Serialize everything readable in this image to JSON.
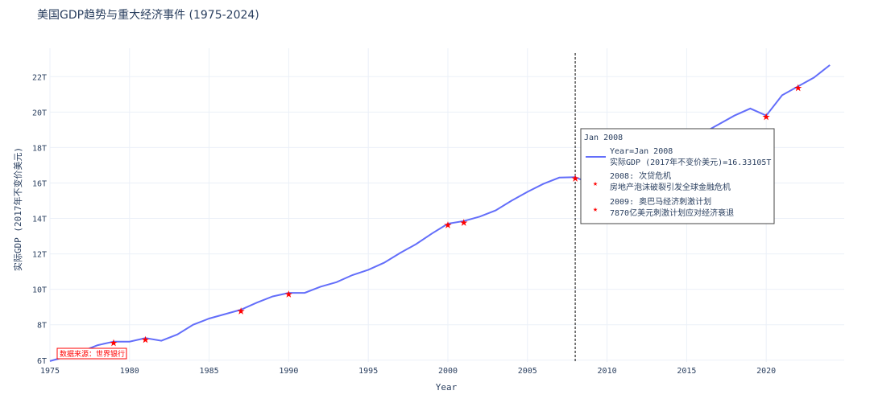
{
  "chart_data": {
    "type": "line",
    "title": "美国GDP趋势与重大经济事件 (1975-2024)",
    "xlabel": "Year",
    "ylabel": "实际GDP (2017年不变价美元)",
    "xlim": [
      1975,
      2024.9
    ],
    "ylim": [
      5.9,
      23.6
    ],
    "grid": true,
    "colors": {
      "line": "#636efa",
      "marker": "#ff0000",
      "spike": "#000000"
    },
    "x_ticks": [
      "1975",
      "1980",
      "1985",
      "1990",
      "1995",
      "2000",
      "2005",
      "2010",
      "2015",
      "2020"
    ],
    "y_ticks": [
      {
        "value": 6,
        "label": "6T"
      },
      {
        "value": 8,
        "label": "8T"
      },
      {
        "value": 10,
        "label": "10T"
      },
      {
        "value": 12,
        "label": "12T"
      },
      {
        "value": 14,
        "label": "14T"
      },
      {
        "value": 16,
        "label": "16T"
      },
      {
        "value": 18,
        "label": "18T"
      },
      {
        "value": 20,
        "label": "20T"
      },
      {
        "value": 22,
        "label": "22T"
      }
    ],
    "series": [
      {
        "x": [
          1975,
          1976,
          1977,
          1978,
          1979,
          1980,
          1981,
          1982,
          1983,
          1984,
          1985,
          1986,
          1987,
          1988,
          1989,
          1990,
          1991,
          1992,
          1993,
          1994,
          1995,
          1996,
          1997,
          1998,
          1999,
          2000,
          2001,
          2002,
          2003,
          2004,
          2005,
          2006,
          2007,
          2008,
          2009,
          2010,
          2011,
          2012,
          2013,
          2014,
          2015,
          2016,
          2017,
          2018,
          2019,
          2020,
          2021,
          2022,
          2023,
          2024
        ],
        "y": [
          5.95,
          6.2,
          6.5,
          6.85,
          7.05,
          7.05,
          7.25,
          7.1,
          7.45,
          8.0,
          8.35,
          8.6,
          8.85,
          9.25,
          9.6,
          9.8,
          9.8,
          10.15,
          10.4,
          10.8,
          11.1,
          11.5,
          12.05,
          12.55,
          13.15,
          13.7,
          13.85,
          14.1,
          14.45,
          15.0,
          15.5,
          15.95,
          16.3,
          16.33,
          15.95,
          16.45,
          16.75,
          17.1,
          17.45,
          17.9,
          18.4,
          18.8,
          19.3,
          19.8,
          20.2,
          19.8,
          20.95,
          21.45,
          21.95,
          22.65
        ]
      }
    ],
    "events": [
      {
        "x": 1979,
        "y": 7.05
      },
      {
        "x": 1981,
        "y": 7.25
      },
      {
        "x": 1987,
        "y": 8.85
      },
      {
        "x": 1990,
        "y": 9.8
      },
      {
        "x": 2000,
        "y": 13.7
      },
      {
        "x": 2001,
        "y": 13.85
      },
      {
        "x": 2008,
        "y": 16.33
      },
      {
        "x": 2009,
        "y": 15.95
      },
      {
        "x": 2020,
        "y": 19.8
      },
      {
        "x": 2022,
        "y": 21.45
      }
    ],
    "hover": {
      "x": 2008,
      "header": "Jan 2008",
      "line1": "Year=Jan 2008",
      "line2": "实际GDP (2017年不变价美元)=16.33105T",
      "event1_title": "2008: 次贷危机",
      "event1_desc": "房地产泡沫破裂引发全球金融危机",
      "event2_title": "2009: 奥巴马经济刺激计划",
      "event2_desc": "7870亿美元刺激计划应对经济衰退"
    },
    "source_note": "数据来源：世界银行"
  }
}
